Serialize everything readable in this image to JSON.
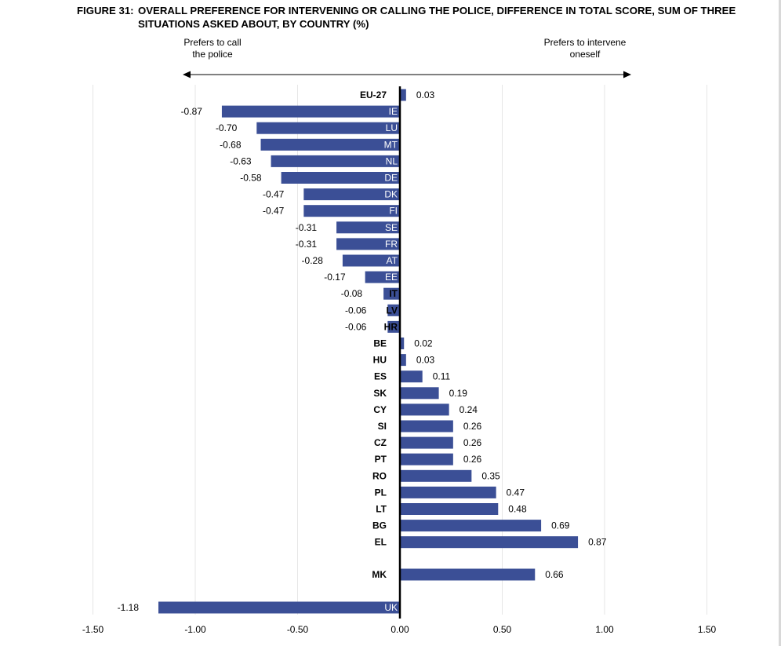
{
  "figure": {
    "label": "FIGURE 31:",
    "title_line1": "OVERALL PREFERENCE FOR INTERVENING OR CALLING THE POLICE, DIFFERENCE IN TOTAL SCORE, SUM OF THREE",
    "title_line2": "SITUATIONS ASKED ABOUT, BY COUNTRY (%)"
  },
  "annotations": {
    "left": "Prefers to call\nthe police",
    "right": "Prefers to intervene\noneself"
  },
  "colors": {
    "bar": "#3b4f96",
    "axis": "#000000",
    "grid": "#e6e6e6",
    "label_inside": "#ffffff"
  },
  "chart_data": {
    "type": "bar",
    "orientation": "horizontal",
    "categories": [
      "EU-27",
      "IE",
      "LU",
      "MT",
      "NL",
      "DE",
      "DK",
      "FI",
      "SE",
      "FR",
      "AT",
      "EE",
      "IT",
      "LV",
      "HR",
      "BE",
      "HU",
      "ES",
      "SK",
      "CY",
      "SI",
      "CZ",
      "PT",
      "RO",
      "PL",
      "LT",
      "BG",
      "EL",
      "MK",
      "UK"
    ],
    "values": [
      0.03,
      -0.87,
      -0.7,
      -0.68,
      -0.63,
      -0.58,
      -0.47,
      -0.47,
      -0.31,
      -0.31,
      -0.28,
      -0.17,
      -0.08,
      -0.06,
      -0.06,
      0.02,
      0.03,
      0.11,
      0.19,
      0.24,
      0.26,
      0.26,
      0.26,
      0.35,
      0.47,
      0.48,
      0.69,
      0.87,
      0.66,
      -1.18
    ],
    "value_labels": [
      "0.03",
      "-0.87",
      "-0.70",
      "-0.68",
      "-0.63",
      "-0.58",
      "-0.47",
      "-0.47",
      "-0.31",
      "-0.31",
      "-0.28",
      "-0.17",
      "-0.08",
      "-0.06",
      "-0.06",
      "0.02",
      "0.03",
      "0.11",
      "0.19",
      "0.24",
      "0.26",
      "0.26",
      "0.26",
      "0.35",
      "0.47",
      "0.48",
      "0.69",
      "0.87",
      "0.66",
      "-1.18"
    ],
    "xlim": [
      -1.5,
      1.5
    ],
    "x_ticks": [
      -1.5,
      -1.0,
      -0.5,
      0.0,
      0.5,
      1.0,
      1.5
    ],
    "x_tick_labels": [
      "-1.50",
      "-1.00",
      "-0.50",
      "0.00",
      "0.50",
      "1.00",
      "1.50"
    ],
    "xlabel": "",
    "ylabel": "",
    "grid": true,
    "legend": false
  }
}
